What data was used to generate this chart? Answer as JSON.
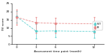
{
  "x": [
    0,
    3,
    6,
    12
  ],
  "int_mean": [
    16.8,
    8.0,
    8.2,
    7.8
  ],
  "int_err_low": [
    3.5,
    4.5,
    4.0,
    4.0
  ],
  "int_err_high": [
    3.5,
    4.5,
    4.0,
    4.0
  ],
  "ei_mean": [
    16.5,
    13.2,
    12.8,
    12.5
  ],
  "ei_err_low": [
    4.5,
    6.5,
    6.0,
    5.5
  ],
  "ei_err_high": [
    4.5,
    3.5,
    3.5,
    4.0
  ],
  "int_color": "#5ecfcf",
  "ei_color": "#e88a8a",
  "ylabel": "ISI score",
  "xlabel": "Assessment time point (month)",
  "ylim": [
    0,
    25
  ],
  "xlim": [
    -0.8,
    13.5
  ],
  "xticks": [
    0,
    3,
    6,
    12
  ],
  "yticks": [
    0,
    5,
    10,
    15,
    20,
    25
  ],
  "legend_int": "INT",
  "legend_ei": "EI",
  "bg_color": "#ffffff"
}
